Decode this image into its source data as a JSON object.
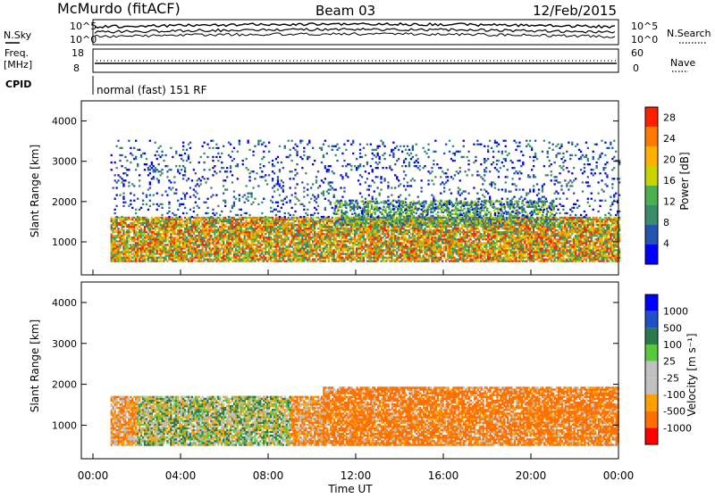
{
  "header": {
    "station": "McMurdo (fitACF)",
    "beam": "Beam 03",
    "date": "12/Feb/2015"
  },
  "noise_panel": {
    "left_label": "N.Sky",
    "right_label": "N.Search",
    "left_ticks": [
      "10^5",
      "10^0"
    ],
    "right_ticks": [
      "10^5",
      "10^0"
    ]
  },
  "freq_panel": {
    "left_label_line1": "Freq.",
    "left_label_line2": "[MHz]",
    "left_ticks": [
      "18",
      "8"
    ],
    "right_label": "Nave",
    "right_ticks": [
      "60",
      "0"
    ]
  },
  "cpid_panel": {
    "label": "CPID",
    "value": "normal (fast) 151 RF"
  },
  "colors": {
    "power_scale": [
      "#0000ff",
      "#2255b0",
      "#3a8d6a",
      "#4caf50",
      "#c8d400",
      "#ffb000",
      "#ff7a00",
      "#ff2000"
    ],
    "velocity_scale": [
      "#0000ff",
      "#1e50c8",
      "#2a7a50",
      "#5ac83c",
      "#c0c0c0",
      "#c0c0c0",
      "#ffa000",
      "#ff7000",
      "#ff0000"
    ]
  },
  "chart_data": [
    {
      "type": "heatmap",
      "title": "",
      "xlabel": "",
      "ylabel": "Slant Range [km]",
      "x_tick_labels": [
        "00:00",
        "04:00",
        "08:00",
        "12:00",
        "16:00",
        "20:00",
        "00:00"
      ],
      "xlim": [
        0,
        24
      ],
      "ylim": [
        180,
        4500
      ],
      "y_ticks": [
        1000,
        2000,
        3000,
        4000
      ],
      "colorbar": {
        "label": "Power [dB]",
        "ticks": [
          4,
          8,
          12,
          16,
          20,
          24,
          28
        ],
        "range": [
          0,
          30
        ]
      },
      "echo_bands": [
        {
          "hour_start": 0.8,
          "hour_end": 24.0,
          "range_low": 500,
          "range_high": 1600,
          "level": "strong"
        },
        {
          "hour_start": 11.0,
          "hour_end": 21.0,
          "range_low": 1400,
          "range_high": 2000,
          "level": "medium"
        },
        {
          "hour_start": 0.8,
          "hour_end": 24.0,
          "range_low": 1600,
          "range_high": 3500,
          "level": "weak"
        }
      ]
    },
    {
      "type": "heatmap",
      "title": "",
      "xlabel": "Time UT",
      "ylabel": "Slant Range [km]",
      "x_tick_labels": [
        "00:00",
        "04:00",
        "08:00",
        "12:00",
        "16:00",
        "20:00",
        "00:00"
      ],
      "xlim": [
        0,
        24
      ],
      "ylim": [
        180,
        4500
      ],
      "y_ticks": [
        1000,
        2000,
        3000,
        4000
      ],
      "colorbar": {
        "label": "Velocity [m s⁻¹]",
        "tick_labels": [
          "1000",
          "500",
          "100",
          "25",
          "-25",
          "-100",
          "-500",
          "-1000"
        ]
      },
      "echo_bands": [
        {
          "hour_start": 0.8,
          "hour_end": 10.5,
          "range_low": 500,
          "range_high": 1700,
          "velocity": "mixed"
        },
        {
          "hour_start": 10.5,
          "hour_end": 24.0,
          "range_low": 500,
          "range_high": 1900,
          "velocity": "negative"
        }
      ]
    }
  ]
}
